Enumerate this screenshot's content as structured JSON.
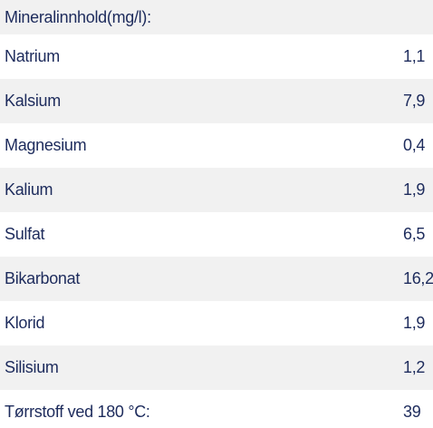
{
  "table": {
    "title": "Mineralinnhold(mg/l):",
    "rows": [
      [
        "Natrium",
        "1,1"
      ],
      [
        "Kalsium",
        "7,9"
      ],
      [
        "Magnesium",
        "0,4"
      ],
      [
        "Kalium",
        "1,9"
      ],
      [
        "Sulfat",
        "6,5"
      ],
      [
        "Bikarbonat",
        "16,2"
      ],
      [
        "Klorid",
        "1,9"
      ],
      [
        "Silisium",
        "1,2"
      ],
      [
        "Tørrstoff ved 180 °C:",
        "39"
      ]
    ]
  }
}
